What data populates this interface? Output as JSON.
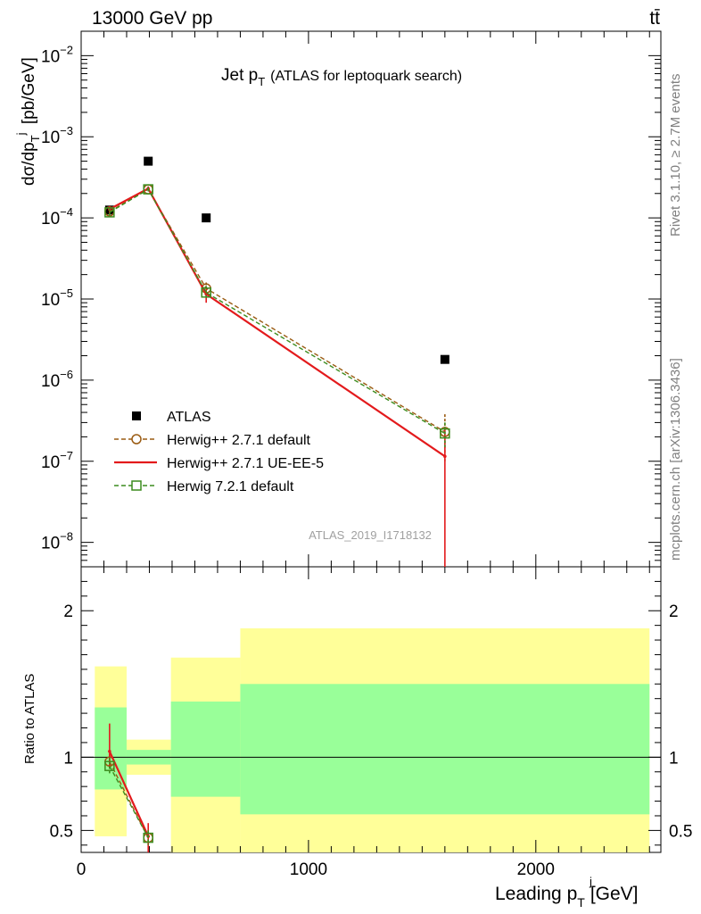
{
  "header": {
    "left_label": "13000 GeV pp",
    "right_label": "tt̄"
  },
  "side_labels": {
    "rivet": "Rivet 3.1.10, ≥ 2.7M events",
    "mcplots": "mcplots.cern.ch [arXiv:1306.3436]"
  },
  "chart_data": [
    {
      "type": "scatter",
      "panel": "main",
      "title_main": "Jet p",
      "title_sub": "T",
      "title_rest": "(ATLAS for leptoquark search)",
      "ylabel": "dσ/dp_T^j [pb/GeV]",
      "yscale": "log",
      "ylim": [
        5e-09,
        0.02
      ],
      "xlim": [
        0,
        2550
      ],
      "y_ticks": [
        {
          "value": 1e-08,
          "mantissa": "10",
          "exp": "−8"
        },
        {
          "value": 1e-07,
          "mantissa": "10",
          "exp": "−7"
        },
        {
          "value": 1e-06,
          "mantissa": "10",
          "exp": "−6"
        },
        {
          "value": 1e-05,
          "mantissa": "10",
          "exp": "−5"
        },
        {
          "value": 0.0001,
          "mantissa": "10",
          "exp": "−4"
        },
        {
          "value": 0.001,
          "mantissa": "10",
          "exp": "−3"
        },
        {
          "value": 0.01,
          "mantissa": "10",
          "exp": "−2"
        }
      ],
      "watermark": "ATLAS_2019_I1718132",
      "series": [
        {
          "name": "ATLAS",
          "style": "data",
          "color": "#000000",
          "x": [
            125,
            295,
            550,
            1600
          ],
          "y": [
            0.000125,
            0.0005,
            0.0001,
            1.8e-06
          ]
        },
        {
          "name": "Herwig++ 2.7.1 default",
          "style": "circle-dashed",
          "color": "#9a5b12",
          "x": [
            125,
            295,
            550,
            1600
          ],
          "y": [
            0.00012,
            0.000225,
            1.35e-05,
            2.3e-07
          ],
          "err_lo": [
            0.00011,
            0.00021,
            1.1e-05,
            1e-07
          ],
          "err_hi": [
            0.00013,
            0.00024,
            1.6e-05,
            3.8e-07
          ]
        },
        {
          "name": "Herwig++ 2.7.1 UE-EE-5",
          "style": "solid-line",
          "color": "#e31a1c",
          "x": [
            125,
            295,
            550,
            1600
          ],
          "y": [
            0.000128,
            0.00023,
            1.15e-05,
            1.15e-07
          ],
          "err_lo": [
            0.000115,
            0.000215,
            9e-06,
            5e-09
          ],
          "err_hi": [
            0.00014,
            0.000245,
            1.4e-05,
            2.5e-07
          ]
        },
        {
          "name": "Herwig 7.2.1 default",
          "style": "square-dashed",
          "color": "#3c8c1e",
          "x": [
            125,
            295,
            550,
            1600
          ],
          "y": [
            0.000117,
            0.000225,
            1.2e-05,
            2.2e-07
          ],
          "err_lo": [
            0.000105,
            0.00021,
            1e-05,
            1.5e-07
          ],
          "err_hi": [
            0.00013,
            0.00024,
            1.45e-05,
            3e-07
          ]
        }
      ]
    },
    {
      "type": "scatter",
      "panel": "ratio",
      "ylabel": "Ratio to ATLAS",
      "xlabel": "Leading p_T^j [GeV]",
      "xlabel_main": "Leading p",
      "xlabel_sup": "j",
      "xlabel_sub": "T",
      "xlabel_unit": "[GeV]",
      "ylim": [
        0.35,
        2.3
      ],
      "xlim": [
        0,
        2550
      ],
      "x_ticks": [
        0,
        1000,
        2000
      ],
      "y_ticks": [
        0.5,
        1,
        2
      ],
      "bins": [
        {
          "lo": 60,
          "hi": 200,
          "yellow": [
            0.46,
            1.62
          ],
          "green": [
            0.78,
            1.34
          ]
        },
        {
          "lo": 200,
          "hi": 395,
          "yellow": [
            0.88,
            1.12
          ],
          "green": [
            0.95,
            1.05
          ]
        },
        {
          "lo": 395,
          "hi": 700,
          "yellow": [
            0.35,
            1.68
          ],
          "green": [
            0.73,
            1.38
          ]
        },
        {
          "lo": 700,
          "hi": 2500,
          "yellow": [
            0.35,
            1.88
          ],
          "green": [
            0.61,
            1.5
          ]
        }
      ],
      "band_colors": {
        "yellow": "#ffff99",
        "green": "#99ff99"
      },
      "series": [
        {
          "name": "Herwig++ 2.7.1 default",
          "color": "#9a5b12",
          "x": [
            125,
            295
          ],
          "y": [
            0.97,
            0.45
          ],
          "err_lo": [
            0.92,
            0.4
          ],
          "err_hi": [
            1.02,
            0.5
          ]
        },
        {
          "name": "Herwig++ 2.7.1 UE-EE-5",
          "color": "#e31a1c",
          "x": [
            125,
            295
          ],
          "y": [
            1.04,
            0.46
          ],
          "err_lo": [
            0.93,
            0.3
          ],
          "err_hi": [
            1.23,
            0.55
          ]
        },
        {
          "name": "Herwig 7.2.1 default",
          "color": "#3c8c1e",
          "x": [
            125,
            295
          ],
          "y": [
            0.94,
            0.45
          ],
          "err_lo": [
            0.88,
            0.4
          ],
          "err_hi": [
            1.0,
            0.5
          ]
        }
      ]
    }
  ]
}
